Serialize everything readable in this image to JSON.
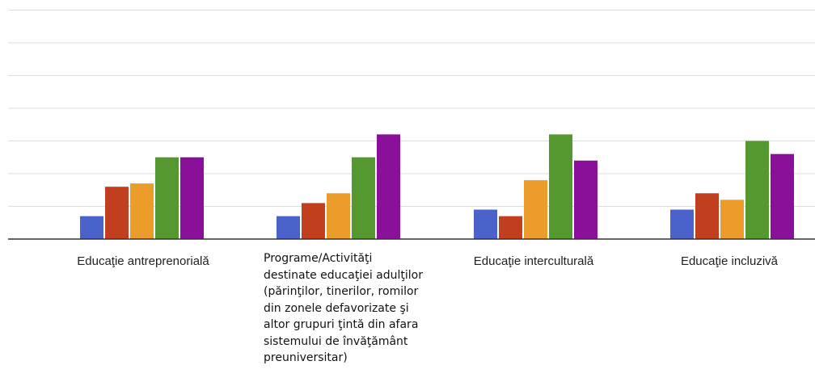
{
  "chart_data": {
    "type": "bar",
    "categories": [
      "Educaţie antreprenorială",
      "Programe/Activităţi\ndestinate educaţiei adulţilor\n(părinţilor, tinerilor, romilor\ndin zonele defavorizate şi\naltor grupuri ţintă din afara\nsistemului de învăţământ\npreuniversitar)",
      "Educaţie interculturală",
      "Educaţie incluzivă"
    ],
    "series": [
      {
        "color": "#4a62c9",
        "values": [
          0.7,
          0.7,
          0.9,
          0.9
        ]
      },
      {
        "color": "#c13e1f",
        "values": [
          1.6,
          1.1,
          0.7,
          1.4
        ]
      },
      {
        "color": "#eb9c2b",
        "values": [
          1.7,
          1.4,
          1.8,
          1.2
        ]
      },
      {
        "color": "#55982f",
        "values": [
          2.5,
          2.5,
          3.2,
          3.0
        ]
      },
      {
        "color": "#8a0f99",
        "values": [
          2.5,
          3.2,
          2.4,
          2.6
        ]
      }
    ],
    "ylim": [
      0,
      7
    ],
    "grid": true,
    "title": "",
    "xlabel": "",
    "ylabel": ""
  }
}
